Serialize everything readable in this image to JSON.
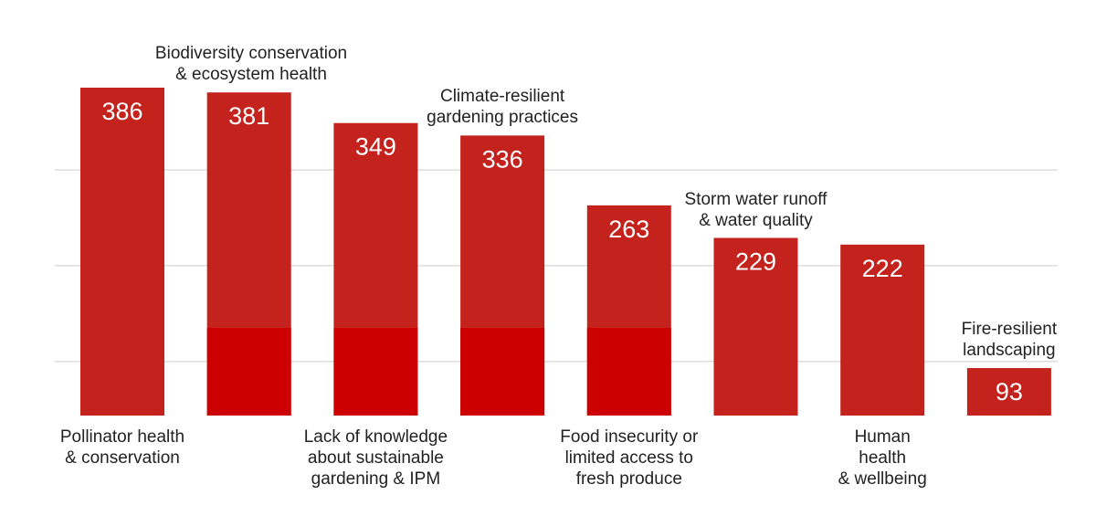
{
  "chart_data": {
    "type": "bar",
    "title": "",
    "xlabel": "",
    "ylabel": "",
    "categories": [
      "Pollinator health & conservation",
      "Biodiversity conservation & ecosystem health",
      "Lack of knowledge about sustainable gardening & IPM",
      "Climate-resilient gardening practices",
      "Food insecurity or limited access to fresh produce",
      "Storm water runoff & water quality",
      "Human health & wellbeing",
      "Fire-resilient landscaping"
    ],
    "label_lines": [
      [
        "Pollinator health",
        "& conservation"
      ],
      [
        "Biodiversity conservation",
        "& ecosystem health"
      ],
      [
        "Lack of knowledge",
        "about sustainable",
        "gardening & IPM"
      ],
      [
        "Climate-resilient",
        "gardening practices"
      ],
      [
        "Food insecurity or",
        "limited access to",
        "fresh produce"
      ],
      [
        "Storm water runoff",
        "& water quality"
      ],
      [
        "Human",
        "health",
        "& wellbeing"
      ],
      [
        "Fire-resilient",
        "landscaping"
      ]
    ],
    "label_placement": [
      "below",
      "above",
      "below",
      "above",
      "below",
      "above",
      "below",
      "above"
    ],
    "values": [
      386,
      381,
      349,
      336,
      263,
      229,
      222,
      93
    ],
    "gridlines": [
      100,
      200,
      300
    ],
    "grid": true,
    "data_labels": true,
    "bar_color": "#c4221c",
    "highlight_color": "#cc0000",
    "label_color": "#ffffff"
  }
}
